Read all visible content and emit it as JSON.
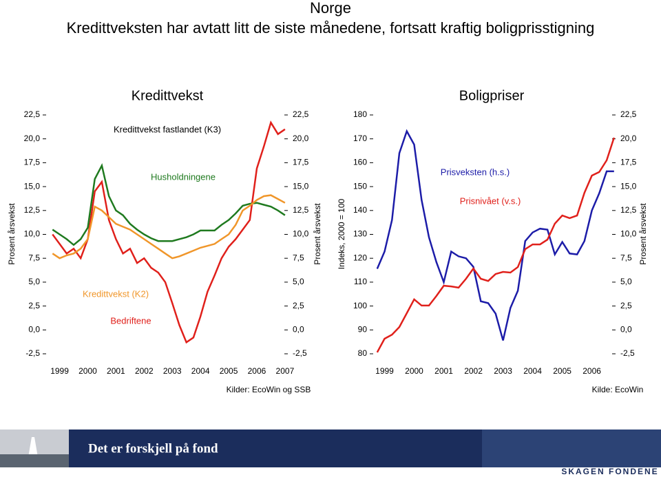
{
  "header": {
    "title": "Norge",
    "subtitle": "Kredittveksten har avtatt litt de siste månedene, fortsatt kraftig boligprisstigning"
  },
  "chart_data": [
    {
      "type": "line",
      "title": "Kredittvekst",
      "ylabel": "Prosent årsvekst",
      "y2label": "Prosent årsvekst",
      "x": [
        1998.75,
        1999,
        1999.25,
        1999.5,
        1999.75,
        2000,
        2000.25,
        2000.5,
        2000.75,
        2001,
        2001.25,
        2001.5,
        2001.75,
        2002,
        2002.25,
        2002.5,
        2002.75,
        2003,
        2003.25,
        2003.5,
        2003.75,
        2004,
        2004.25,
        2004.5,
        2004.75,
        2005,
        2005.25,
        2005.5,
        2005.75,
        2006,
        2006.25,
        2006.5,
        2006.75,
        2007
      ],
      "xlim": [
        1998.4,
        2007.1
      ],
      "xticks": [
        1999,
        2000,
        2001,
        2002,
        2003,
        2004,
        2005,
        2006,
        2007
      ],
      "ylim": [
        -2.5,
        22.5
      ],
      "yticks": [
        {
          "value": -2.5,
          "label": "-2,5"
        },
        {
          "value": 0,
          "label": "0,0"
        },
        {
          "value": 2.5,
          "label": "2,5"
        },
        {
          "value": 5,
          "label": "5,0"
        },
        {
          "value": 7.5,
          "label": "7,5"
        },
        {
          "value": 10,
          "label": "10,0"
        },
        {
          "value": 12.5,
          "label": "12,5"
        },
        {
          "value": 15,
          "label": "15,0"
        },
        {
          "value": 17.5,
          "label": "17,5"
        },
        {
          "value": 20,
          "label": "20,0"
        },
        {
          "value": 22.5,
          "label": "22,5"
        }
      ],
      "y2lim": [
        -2.5,
        22.5
      ],
      "y2ticks": [
        {
          "value": -2.5,
          "label": "-2,5"
        },
        {
          "value": 0,
          "label": "0,0"
        },
        {
          "value": 2.5,
          "label": "2,5"
        },
        {
          "value": 5,
          "label": "5,0"
        },
        {
          "value": 7.5,
          "label": "7,5"
        },
        {
          "value": 10,
          "label": "10,0"
        },
        {
          "value": 12.5,
          "label": "12,5"
        },
        {
          "value": 15,
          "label": "15,0"
        },
        {
          "value": 17.5,
          "label": "17,5"
        },
        {
          "value": 20,
          "label": "20,0"
        },
        {
          "value": 22.5,
          "label": "22,5"
        }
      ],
      "series": [
        {
          "name": "Bedriftene",
          "color": "#e0201b",
          "values": [
            10,
            9,
            8,
            8.5,
            7.5,
            9.5,
            14.5,
            15.5,
            11.5,
            9.5,
            8,
            8.5,
            7,
            7.5,
            6.5,
            6,
            5,
            2.8,
            0.5,
            -1.3,
            -0.8,
            1.4,
            4,
            5.7,
            7.5,
            8.7,
            9.5,
            10.5,
            11.5,
            16.9,
            19.2,
            21.7,
            20.5,
            21
          ]
        },
        {
          "name": "Husholdningene",
          "color": "#1f7a1f",
          "values": [
            10.5,
            10,
            9.5,
            8.9,
            9.5,
            10.7,
            15.8,
            17.2,
            14,
            12.5,
            12,
            11.1,
            10.5,
            10,
            9.6,
            9.3,
            9.3,
            9.3,
            9.5,
            9.7,
            10,
            10.4,
            10.4,
            10.4,
            11,
            11.5,
            12.2,
            13,
            13.2,
            13.3,
            13.1,
            12.9,
            12.5,
            12
          ]
        },
        {
          "name": "Kredittvekst (K2)",
          "color": "#f0962a",
          "values": [
            8,
            7.5,
            7.8,
            8,
            8.5,
            9.5,
            12.9,
            12.5,
            11.8,
            11.1,
            10.8,
            10.5,
            10,
            9.5,
            9,
            8.5,
            8,
            7.5,
            7.7,
            8,
            8.3,
            8.6,
            8.8,
            9,
            9.5,
            10,
            11,
            12.5,
            13,
            13.6,
            14,
            14.1,
            13.7,
            13.3
          ]
        }
      ],
      "annotations": [
        "Kredittvekst fastlandet (K3)"
      ],
      "source": "Kilder: EcoWin og SSB"
    },
    {
      "type": "line",
      "title": "Boligpriser",
      "ylabel": "Indeks, 2000 = 100",
      "y2label": "Prosent årsvekst",
      "x": [
        1998.75,
        1999,
        1999.25,
        1999.5,
        1999.75,
        2000,
        2000.25,
        2000.5,
        2000.75,
        2001,
        2001.25,
        2001.5,
        2001.75,
        2002,
        2002.25,
        2002.5,
        2002.75,
        2003,
        2003.25,
        2003.5,
        2003.75,
        2004,
        2004.25,
        2004.5,
        2004.75,
        2005,
        2005.25,
        2005.5,
        2005.75,
        2006,
        2006.25,
        2006.5,
        2006.75
      ],
      "xlim": [
        1998.5,
        2006.8
      ],
      "xticks": [
        1999,
        2000,
        2001,
        2002,
        2003,
        2004,
        2005,
        2006
      ],
      "ylim": [
        80,
        180
      ],
      "yticks": [
        80,
        90,
        100,
        110,
        120,
        130,
        140,
        150,
        160,
        170,
        180
      ],
      "y2lim": [
        -2.5,
        22.5
      ],
      "y2ticks": [
        {
          "value": -2.5,
          "label": "-2,5"
        },
        {
          "value": 0,
          "label": "0,0"
        },
        {
          "value": 2.5,
          "label": "2,5"
        },
        {
          "value": 5,
          "label": "5,0"
        },
        {
          "value": 7.5,
          "label": "7,5"
        },
        {
          "value": 10,
          "label": "10,0"
        },
        {
          "value": 12.5,
          "label": "12,5"
        },
        {
          "value": 15,
          "label": "15,0"
        },
        {
          "value": 17.5,
          "label": "17,5"
        },
        {
          "value": 20,
          "label": "20,0"
        },
        {
          "value": 22.5,
          "label": "22,5"
        }
      ],
      "series": [
        {
          "name": "Prisveksten (h.s.)",
          "color": "#1c1ca8",
          "axis": "y2",
          "values": [
            6.4,
            8.2,
            11.5,
            18.5,
            20.8,
            19.4,
            13.6,
            9.7,
            7.1,
            5,
            8.2,
            7.7,
            7.5,
            6.6,
            3,
            2.8,
            1.7,
            -1.1,
            2.3,
            4.1,
            9.3,
            10.2,
            10.6,
            10.5,
            7.9,
            9.2,
            8,
            7.9,
            9.3,
            12.5,
            14.3,
            16.6,
            16.6
          ]
        },
        {
          "name": "Prisnivået (v.s.)",
          "color": "#e0201b",
          "values": [
            80.6,
            86.3,
            88,
            91.2,
            97,
            102.8,
            100.2,
            100.2,
            104.2,
            108.5,
            108.2,
            107.7,
            111.4,
            115.7,
            111.4,
            110.5,
            113.4,
            114.3,
            114,
            116.3,
            123.8,
            125.8,
            125.8,
            127.8,
            134.5,
            137.9,
            136.8,
            137.9,
            147.4,
            154.6,
            156.1,
            161,
            170.5
          ]
        }
      ],
      "source": "Kilde: EcoWin"
    }
  ],
  "footer": {
    "slogan": "Det er forskjell på fond",
    "logo": "SKAGEN FONDENE"
  }
}
